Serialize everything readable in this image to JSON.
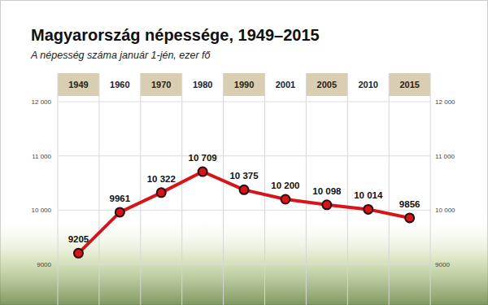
{
  "chart_data": {
    "type": "line",
    "title": "Magyarország népessége, 1949–2015",
    "subtitle": "A népesség száma január 1-jén, ezer fő",
    "categories": [
      "1949",
      "1960",
      "1970",
      "1980",
      "1990",
      "2001",
      "2005",
      "2010",
      "2015"
    ],
    "values": [
      9205,
      9961,
      10322,
      10709,
      10375,
      10200,
      10098,
      10014,
      9856
    ],
    "value_labels": [
      "9205",
      "9961",
      "10 322",
      "10 709",
      "10 375",
      "10 200",
      "10 098",
      "10 014",
      "9856"
    ],
    "color": "#d8141b",
    "marker": "circle",
    "ylim": [
      8250,
      12000
    ],
    "yticks": [
      9000,
      {
        "value": 10000,
        "label": "10 000"
      },
      {
        "value": 11000,
        "label": "11 000"
      },
      {
        "value": 12000,
        "label": "12 000"
      }
    ],
    "grid": true,
    "data_labels": true
  }
}
